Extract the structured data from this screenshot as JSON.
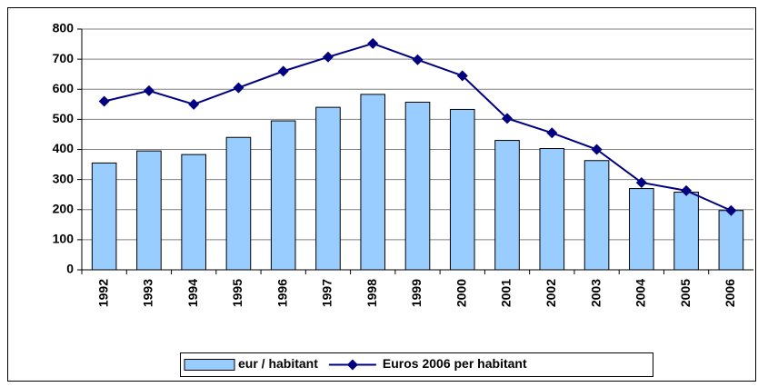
{
  "chart_data": {
    "type": "bar",
    "categories": [
      "1992",
      "1993",
      "1994",
      "1995",
      "1996",
      "1997",
      "1998",
      "1999",
      "2000",
      "2001",
      "2002",
      "2003",
      "2004",
      "2005",
      "2006"
    ],
    "series": [
      {
        "name": "eur / habitant",
        "type": "bar",
        "color": "#99ccff",
        "values": [
          355,
          395,
          383,
          440,
          495,
          540,
          583,
          557,
          533,
          430,
          403,
          363,
          270,
          258,
          197
        ]
      },
      {
        "name": "Euros 2006 per habitant",
        "type": "line",
        "color": "#000080",
        "values": [
          560,
          595,
          550,
          605,
          660,
          707,
          752,
          698,
          645,
          503,
          455,
          400,
          290,
          263,
          197
        ]
      }
    ],
    "ylim": [
      0,
      800
    ],
    "yticks": [
      0,
      100,
      200,
      300,
      400,
      500,
      600,
      700,
      800
    ],
    "grid": true,
    "legend": "bottom"
  }
}
